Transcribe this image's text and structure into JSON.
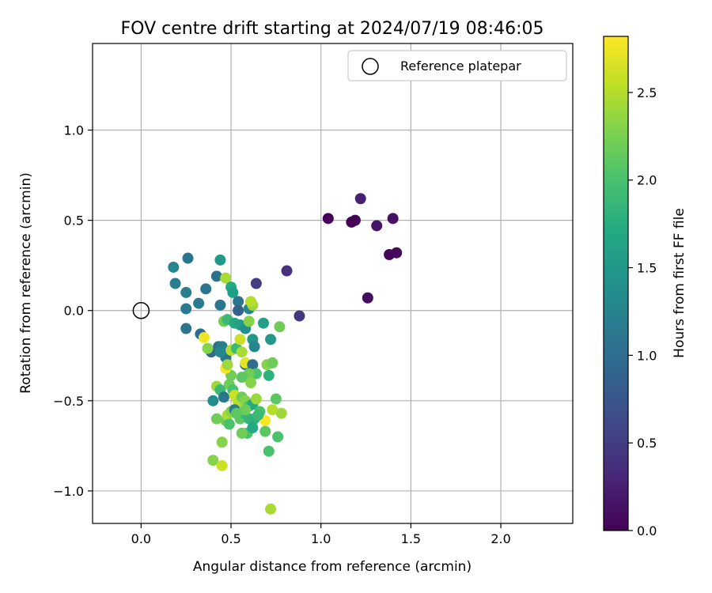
{
  "chart_data": {
    "type": "scatter",
    "title": "FOV centre drift starting at 2024/07/19 08:46:05",
    "xlabel": "Angular distance from reference (arcmin)",
    "ylabel": "Rotation from reference (arcmin)",
    "xlim": [
      -0.27,
      2.4
    ],
    "ylim": [
      -1.18,
      1.48
    ],
    "xticks": [
      0.0,
      0.5,
      1.0,
      1.5,
      2.0
    ],
    "yticks": [
      -1.0,
      -0.5,
      0.0,
      0.5,
      1.0
    ],
    "xtick_labels": [
      "0.0",
      "0.5",
      "1.0",
      "1.5",
      "2.0"
    ],
    "ytick_labels": [
      "−1.0",
      "−0.5",
      "0.0",
      "0.5",
      "1.0"
    ],
    "grid": true,
    "legend_position": "top-right",
    "legend_label": "Reference platepar",
    "reference_point": [
      0.0,
      0.0
    ],
    "colorbar": {
      "label": "Hours from first FF file",
      "colormap": "viridis",
      "range": [
        0.0,
        2.82
      ],
      "ticks": [
        0.0,
        0.5,
        1.0,
        1.5,
        2.0,
        2.5
      ],
      "tick_labels": [
        "0.0",
        "0.5",
        "1.0",
        "1.5",
        "2.0",
        "2.5"
      ]
    },
    "points": [
      [
        1.04,
        0.51,
        0.02
      ],
      [
        1.17,
        0.49,
        0.02
      ],
      [
        1.19,
        0.5,
        0.03
      ],
      [
        1.22,
        0.62,
        0.25
      ],
      [
        1.31,
        0.47,
        0.15
      ],
      [
        1.4,
        0.51,
        0.12
      ],
      [
        1.38,
        0.31,
        0.05
      ],
      [
        1.42,
        0.32,
        0.06
      ],
      [
        1.26,
        0.07,
        0.1
      ],
      [
        0.81,
        0.22,
        0.4
      ],
      [
        0.88,
        -0.03,
        0.45
      ],
      [
        0.64,
        0.15,
        0.5
      ],
      [
        0.18,
        0.24,
        1.3
      ],
      [
        0.26,
        0.29,
        1.1
      ],
      [
        0.19,
        0.15,
        1.2
      ],
      [
        0.25,
        0.1,
        1.2
      ],
      [
        0.32,
        0.04,
        1.15
      ],
      [
        0.25,
        0.01,
        1.15
      ],
      [
        0.25,
        -0.1,
        1.1
      ],
      [
        0.33,
        -0.13,
        1.0
      ],
      [
        0.36,
        0.12,
        1.1
      ],
      [
        0.42,
        0.19,
        1.05
      ],
      [
        0.44,
        0.28,
        1.5
      ],
      [
        0.44,
        0.03,
        1.1
      ],
      [
        0.39,
        -0.23,
        0.95
      ],
      [
        0.43,
        -0.2,
        1.0
      ],
      [
        0.47,
        0.18,
        2.45
      ],
      [
        0.5,
        0.13,
        1.7
      ],
      [
        0.51,
        0.1,
        1.6
      ],
      [
        0.54,
        0.05,
        1.1
      ],
      [
        0.54,
        0.0,
        0.85
      ],
      [
        0.46,
        -0.06,
        2.2
      ],
      [
        0.48,
        -0.05,
        1.9
      ],
      [
        0.52,
        -0.07,
        1.7
      ],
      [
        0.55,
        -0.08,
        1.6
      ],
      [
        0.58,
        -0.1,
        1.4
      ],
      [
        0.6,
        0.01,
        1.3
      ],
      [
        0.62,
        0.03,
        2.4
      ],
      [
        0.61,
        0.05,
        2.5
      ],
      [
        0.6,
        -0.06,
        2.3
      ],
      [
        0.62,
        -0.16,
        1.5
      ],
      [
        0.63,
        -0.2,
        1.3
      ],
      [
        0.68,
        -0.07,
        1.6
      ],
      [
        0.72,
        -0.16,
        1.5
      ],
      [
        0.77,
        -0.09,
        2.2
      ],
      [
        0.45,
        -0.2,
        1.2
      ],
      [
        0.47,
        -0.26,
        1.1
      ],
      [
        0.5,
        -0.22,
        2.5
      ],
      [
        0.53,
        -0.21,
        1.9
      ],
      [
        0.56,
        -0.23,
        2.45
      ],
      [
        0.55,
        -0.16,
        2.6
      ],
      [
        0.58,
        -0.3,
        1.0
      ],
      [
        0.58,
        -0.29,
        2.7
      ],
      [
        0.62,
        -0.3,
        1.0
      ],
      [
        0.64,
        -0.35,
        2.0
      ],
      [
        0.6,
        -0.35,
        2.2
      ],
      [
        0.56,
        -0.37,
        2.1
      ],
      [
        0.5,
        -0.36,
        2.2
      ],
      [
        0.47,
        -0.32,
        2.8
      ],
      [
        0.48,
        -0.3,
        2.4
      ],
      [
        0.35,
        -0.15,
        2.75
      ],
      [
        0.37,
        -0.21,
        2.3
      ],
      [
        0.42,
        -0.42,
        2.4
      ],
      [
        0.44,
        -0.44,
        1.9
      ],
      [
        0.46,
        -0.48,
        1.1
      ],
      [
        0.4,
        -0.5,
        1.4
      ],
      [
        0.49,
        -0.41,
        2.2
      ],
      [
        0.51,
        -0.44,
        2.0
      ],
      [
        0.52,
        -0.47,
        2.6
      ],
      [
        0.54,
        -0.51,
        2.5
      ],
      [
        0.56,
        -0.48,
        2.2
      ],
      [
        0.58,
        -0.5,
        2.3
      ],
      [
        0.6,
        -0.53,
        2.0
      ],
      [
        0.62,
        -0.52,
        1.7
      ],
      [
        0.64,
        -0.49,
        2.4
      ],
      [
        0.66,
        -0.56,
        2.0
      ],
      [
        0.7,
        -0.3,
        2.3
      ],
      [
        0.73,
        -0.29,
        2.2
      ],
      [
        0.71,
        -0.36,
        1.8
      ],
      [
        0.75,
        -0.49,
        2.1
      ],
      [
        0.73,
        -0.55,
        2.5
      ],
      [
        0.78,
        -0.57,
        2.4
      ],
      [
        0.69,
        -0.61,
        2.8
      ],
      [
        0.42,
        -0.6,
        2.2
      ],
      [
        0.47,
        -0.61,
        2.2
      ],
      [
        0.48,
        -0.58,
        2.45
      ],
      [
        0.5,
        -0.56,
        2.3
      ],
      [
        0.52,
        -0.55,
        1.2
      ],
      [
        0.55,
        -0.6,
        2.1
      ],
      [
        0.57,
        -0.57,
        1.9
      ],
      [
        0.6,
        -0.6,
        1.85
      ],
      [
        0.63,
        -0.6,
        1.8
      ],
      [
        0.58,
        -0.55,
        2.2
      ],
      [
        0.59,
        -0.68,
        2.0
      ],
      [
        0.56,
        -0.68,
        2.2
      ],
      [
        0.62,
        -0.65,
        1.7
      ],
      [
        0.69,
        -0.67,
        2.1
      ],
      [
        0.76,
        -0.7,
        2.0
      ],
      [
        0.45,
        -0.73,
        2.3
      ],
      [
        0.71,
        -0.78,
        2.0
      ],
      [
        0.4,
        -0.83,
        2.3
      ],
      [
        0.45,
        -0.86,
        2.6
      ],
      [
        0.72,
        -1.1,
        2.45
      ],
      [
        0.61,
        -0.4,
        2.3
      ],
      [
        0.53,
        -0.57,
        2.1
      ],
      [
        0.65,
        -0.58,
        1.9
      ],
      [
        0.49,
        -0.63,
        2.0
      ],
      [
        0.44,
        -0.23,
        1.3
      ]
    ]
  }
}
